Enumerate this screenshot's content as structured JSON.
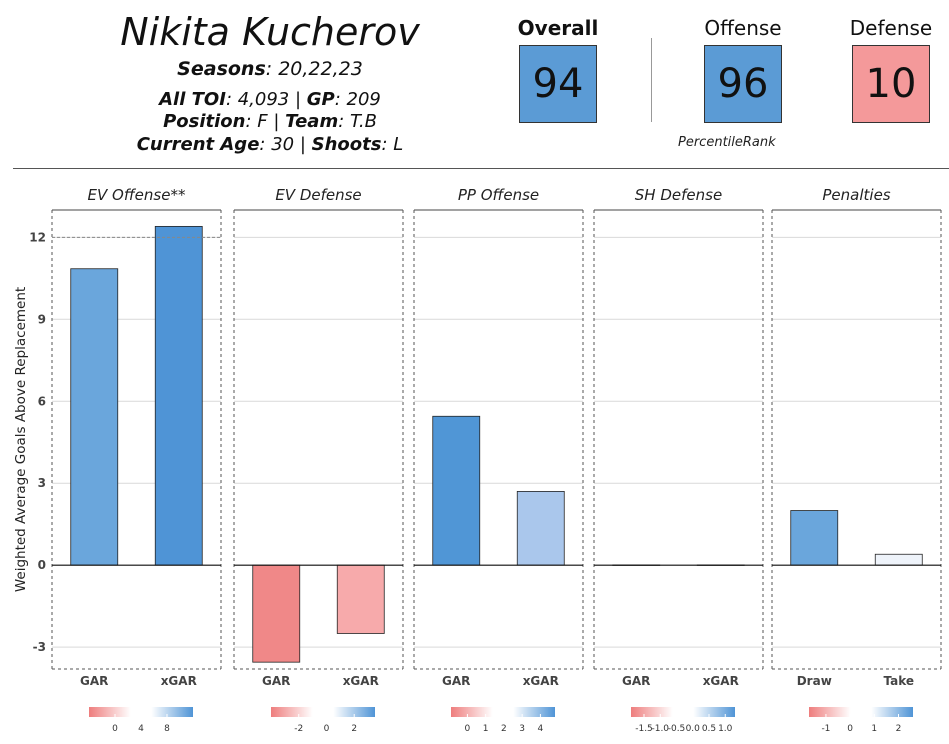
{
  "player": {
    "name": "Nikita Kucherov",
    "seasons_label": "Seasons",
    "seasons_value": ": 20,22,23",
    "toi_label": "All TOI",
    "toi_value": ": 4,093 | ",
    "gp_label": "GP",
    "gp_value": ": 209",
    "position_label": "Position",
    "position_value": ": F | ",
    "team_label": "Team",
    "team_value": ": T.B",
    "age_label": "Current Age",
    "age_value": ": 30 | ",
    "shoots_label": "Shoots",
    "shoots_value": ": L"
  },
  "scores": {
    "overall_label": "Overall",
    "overall_value": "94",
    "overall_color": "#5b9bd5",
    "offense_label": "Offense",
    "offense_value": "96",
    "offense_color": "#5b9bd5",
    "defense_label": "Defense",
    "defense_value": "10",
    "defense_color": "#f4999a",
    "percentile_caption": "PercentileRank"
  },
  "chart_data": {
    "type": "bar",
    "ylabel": "Weighted Average Goals Above Replacement",
    "ylim": [
      -3.8,
      13
    ],
    "yticks": [
      -3,
      0,
      3,
      6,
      9,
      12
    ],
    "reference_line": 12,
    "grid": true,
    "panels": [
      {
        "title": "EV Offense**",
        "categories": [
          "GAR",
          "xGAR"
        ],
        "values": [
          10.85,
          12.4
        ],
        "colors": [
          "#6aa6dc",
          "#4f94d6"
        ],
        "legend": {
          "ticks": [
            "0",
            "4",
            "8"
          ],
          "min": -4,
          "max": 12,
          "tickvals": [
            0,
            4,
            8
          ]
        }
      },
      {
        "title": "EV Defense",
        "categories": [
          "GAR",
          "xGAR"
        ],
        "values": [
          -3.55,
          -2.5
        ],
        "colors": [
          "#f08888",
          "#f7aaab"
        ],
        "legend": {
          "ticks": [
            "-2",
            "0",
            "2"
          ],
          "min": -4,
          "max": 3.5,
          "tickvals": [
            -2,
            0,
            2
          ]
        }
      },
      {
        "title": "PP Offense",
        "categories": [
          "GAR",
          "xGAR"
        ],
        "values": [
          5.45,
          2.7
        ],
        "colors": [
          "#5096d6",
          "#aac7ec"
        ],
        "legend": {
          "ticks": [
            "0",
            "1",
            "2",
            "3",
            "4"
          ],
          "min": -0.9,
          "max": 4.8,
          "tickvals": [
            0,
            1,
            2,
            3,
            4
          ]
        }
      },
      {
        "title": "SH Defense",
        "categories": [
          "GAR",
          "xGAR"
        ],
        "values": [
          0.01,
          0.01
        ],
        "colors": [
          "#eeeeee",
          "#eeeeee"
        ],
        "legend": {
          "ticks": [
            "-1.5",
            "-1.0",
            "-0.5",
            "0.0",
            "0.5",
            "1.0"
          ],
          "min": -1.9,
          "max": 1.3,
          "tickvals": [
            -1.5,
            -1.0,
            -0.5,
            0.0,
            0.5,
            1.0
          ]
        }
      },
      {
        "title": "Penalties",
        "categories": [
          "Draw",
          "Take"
        ],
        "values": [
          2.0,
          0.4
        ],
        "colors": [
          "#6aa6dc",
          "#eef3fa"
        ],
        "legend": {
          "ticks": [
            "-1",
            "0",
            "1",
            "2"
          ],
          "min": -1.7,
          "max": 2.6,
          "tickvals": [
            -1,
            0,
            1,
            2
          ]
        }
      }
    ]
  }
}
